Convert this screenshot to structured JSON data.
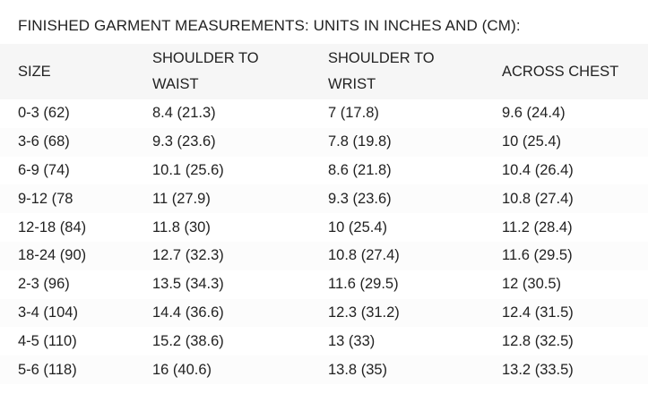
{
  "title": "FINISHED GARMENT MEASUREMENTS: UNITS IN INCHES AND (CM):",
  "columns": [
    "SIZE",
    "SHOULDER TO WAIST",
    "SHOULDER TO WRIST",
    "ACROSS CHEST"
  ],
  "rows": [
    [
      "0-3 (62)",
      "8.4 (21.3)",
      "7 (17.8)",
      "9.6 (24.4)"
    ],
    [
      "3-6 (68)",
      "9.3 (23.6)",
      "7.8 (19.8)",
      "10 (25.4)"
    ],
    [
      "6-9 (74)",
      "10.1 (25.6)",
      "8.6 (21.8)",
      "10.4 (26.4)"
    ],
    [
      "9-12 (78",
      "11 (27.9)",
      "9.3 (23.6)",
      "10.8 (27.4)"
    ],
    [
      "12-18 (84)",
      "11.8 (30)",
      "10 (25.4)",
      "11.2 (28.4)"
    ],
    [
      "18-24 (90)",
      "12.7 (32.3)",
      "10.8 (27.4)",
      "11.6 (29.5)"
    ],
    [
      "2-3 (96)",
      "13.5 (34.3)",
      "11.6 (29.5)",
      "12 (30.5)"
    ],
    [
      "3-4 (104)",
      "14.4 (36.6)",
      "12.3 (31.2)",
      "12.4 (31.5)"
    ],
    [
      "4-5 (110)",
      "15.2 (38.6)",
      "13 (33)",
      "12.8 (32.5)"
    ],
    [
      "5-6 (118)",
      "16 (40.6)",
      "13.8 (35)",
      "13.2 (33.5)"
    ]
  ]
}
